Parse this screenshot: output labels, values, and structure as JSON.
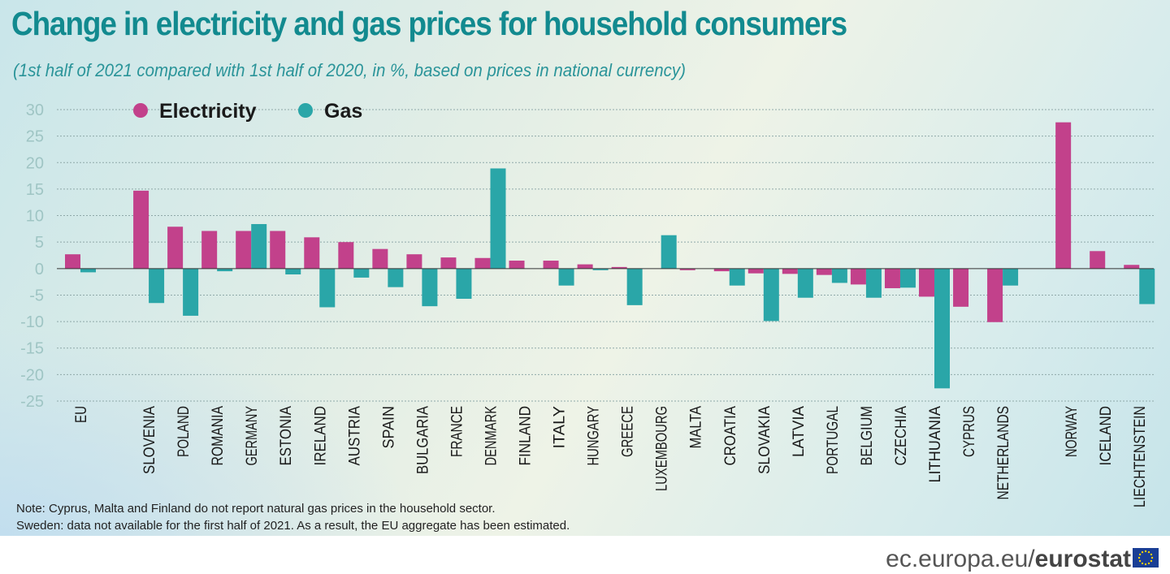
{
  "footer": {
    "site": "ec.europa.eu/",
    "brand": "eurostat"
  },
  "notes": [
    "Note: Cyprus, Malta and Finland do not report natural gas prices in the household sector.",
    "Sweden: data not available for the first half of 2021. As a result, the EU aggregate has been estimated."
  ],
  "colors": {
    "electricity": "#c2418b",
    "gas": "#2aa6a8",
    "title": "#128a8f",
    "axis_text": "#9fc5c4"
  },
  "chart_data": {
    "type": "bar",
    "title": "Change in electricity and gas prices for household consumers",
    "subtitle": "(1st half of 2021 compared with 1st half of 2020, in %, based on prices in national currency)",
    "ylim": [
      -25,
      30
    ],
    "yticks": [
      30,
      25,
      20,
      15,
      10,
      5,
      0,
      -5,
      -10,
      -15,
      -20,
      -25
    ],
    "grid": true,
    "legend": "top-left",
    "categories": [
      "EU",
      "SLOVENIA",
      "POLAND",
      "ROMANIA",
      "GERMANY",
      "ESTONIA",
      "IRELAND",
      "AUSTRIA",
      "SPAIN",
      "BULGARIA",
      "FRANCE",
      "DENMARK",
      "FINLAND",
      "ITALY",
      "HUNGARY",
      "GREECE",
      "LUXEMBOURG",
      "MALTA",
      "CROATIA",
      "SLOVAKIA",
      "LATVIA",
      "PORTUGAL",
      "BELGIUM",
      "CZECHIA",
      "LITHUANIA",
      "CYPRUS",
      "NETHERLANDS",
      "NORWAY",
      "ICELAND",
      "LIECHTENSTEIN"
    ],
    "series": [
      {
        "name": "Electricity",
        "values": [
          2.7,
          14.7,
          7.9,
          7.1,
          7.1,
          7.1,
          5.9,
          5.0,
          3.7,
          2.7,
          2.1,
          2.0,
          1.5,
          1.5,
          0.8,
          0.3,
          null,
          -0.3,
          -0.5,
          -0.9,
          -1.0,
          -1.2,
          -3.0,
          -3.7,
          -5.3,
          -7.2,
          -10.1,
          27.6,
          3.3,
          0.7
        ]
      },
      {
        "name": "Gas",
        "values": [
          -0.7,
          -6.5,
          -8.9,
          -0.5,
          8.4,
          -1.1,
          -7.3,
          -1.7,
          -3.5,
          -7.1,
          -5.7,
          18.9,
          null,
          -3.2,
          -0.3,
          -6.9,
          6.3,
          null,
          -3.2,
          -9.9,
          -5.5,
          -2.7,
          -5.5,
          -3.6,
          -22.6,
          null,
          -3.2,
          null,
          null,
          -6.7
        ]
      }
    ]
  }
}
